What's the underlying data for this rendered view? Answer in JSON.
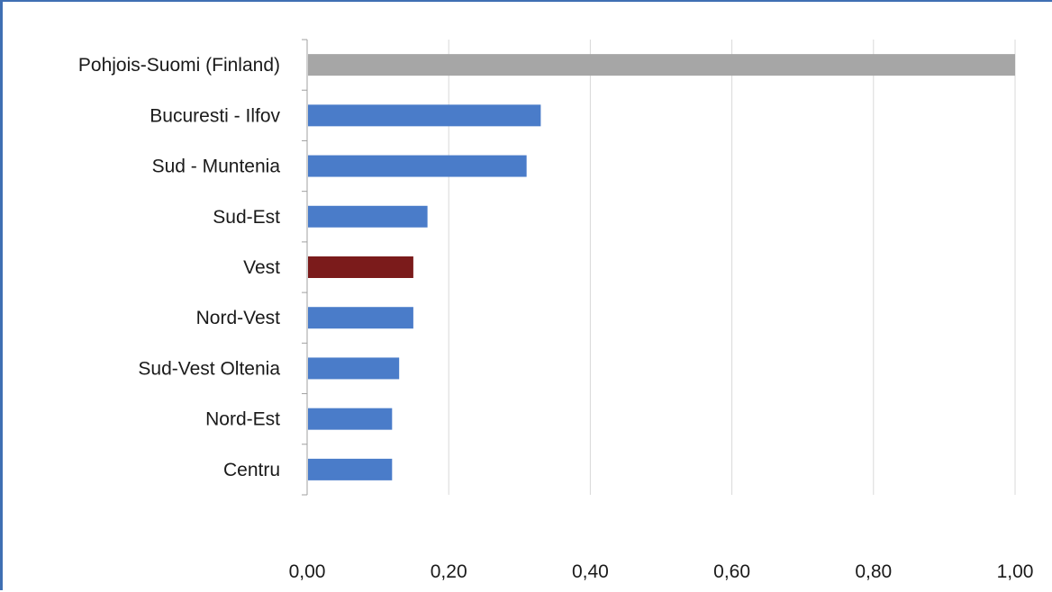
{
  "chart_data": {
    "type": "bar",
    "orientation": "horizontal",
    "categories": [
      "Pohjois-Suomi (Finland)",
      "Bucuresti - Ilfov",
      "Sud - Muntenia",
      "Sud-Est",
      "Vest",
      "Nord-Vest",
      "Sud-Vest Oltenia",
      "Nord-Est",
      "Centru"
    ],
    "values": [
      1.0,
      0.33,
      0.31,
      0.17,
      0.15,
      0.15,
      0.13,
      0.12,
      0.12
    ],
    "bar_colors": [
      "#a6a6a6",
      "#4a7cc9",
      "#4a7cc9",
      "#4a7cc9",
      "#7b1b1b",
      "#4a7cc9",
      "#4a7cc9",
      "#4a7cc9",
      "#4a7cc9"
    ],
    "xlim": [
      0,
      1.0
    ],
    "xticks": [
      0,
      0.2,
      0.4,
      0.6,
      0.8,
      1.0
    ],
    "xtick_labels": [
      "0,00",
      "0,20",
      "0,40",
      "0,60",
      "0,80",
      "1,00"
    ],
    "grid": true,
    "legend": false,
    "title": "",
    "xlabel": "",
    "ylabel": ""
  }
}
